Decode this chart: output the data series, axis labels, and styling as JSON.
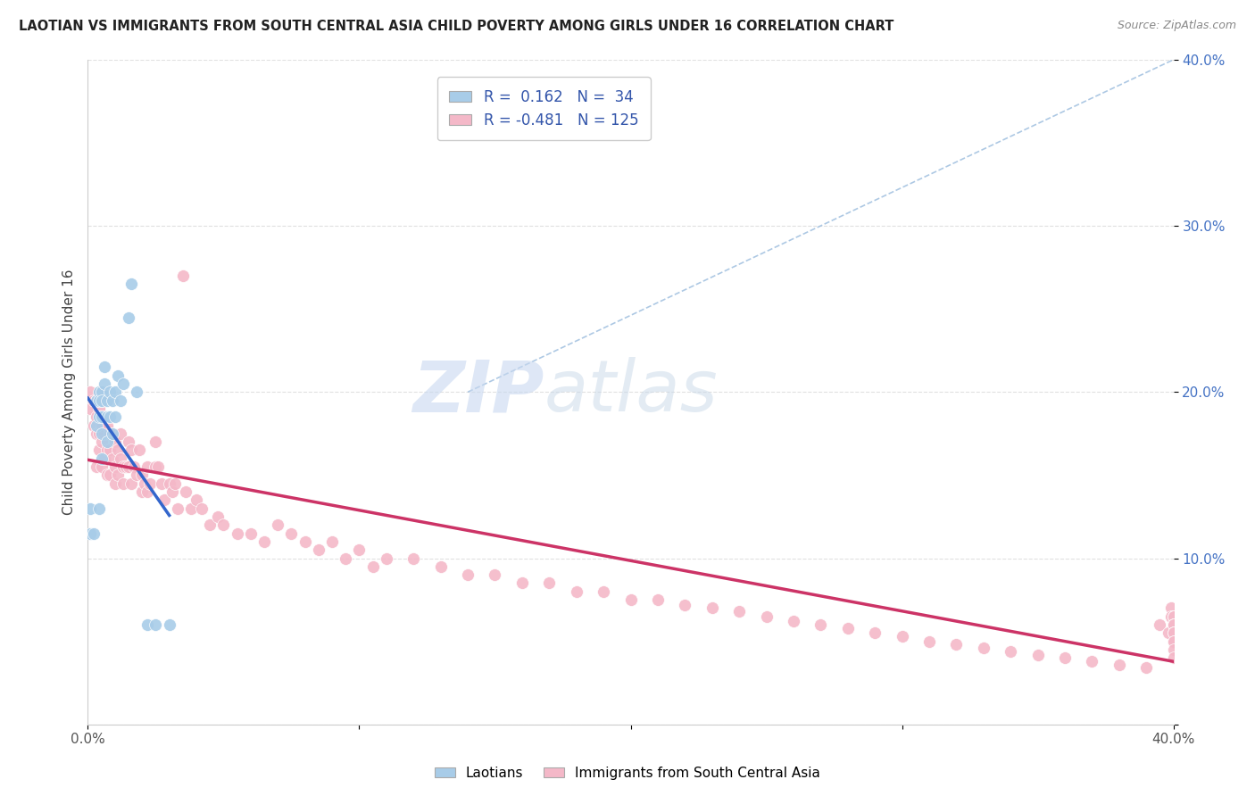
{
  "title": "LAOTIAN VS IMMIGRANTS FROM SOUTH CENTRAL ASIA CHILD POVERTY AMONG GIRLS UNDER 16 CORRELATION CHART",
  "source": "Source: ZipAtlas.com",
  "ylabel": "Child Poverty Among Girls Under 16",
  "watermark_zip": "ZIP",
  "watermark_atlas": "atlas",
  "xlim": [
    0.0,
    0.4
  ],
  "ylim": [
    0.0,
    0.4
  ],
  "blue_R": 0.162,
  "blue_N": 34,
  "pink_R": -0.481,
  "pink_N": 125,
  "blue_scatter_color": "#a8cce8",
  "pink_scatter_color": "#f4b8c8",
  "trend_blue": "#3366cc",
  "trend_pink": "#cc3366",
  "diagonal_color": "#99bbdd",
  "background_color": "#ffffff",
  "grid_color": "#dddddd",
  "laotians_x": [
    0.001,
    0.001,
    0.002,
    0.003,
    0.003,
    0.004,
    0.004,
    0.004,
    0.004,
    0.005,
    0.005,
    0.005,
    0.005,
    0.005,
    0.006,
    0.006,
    0.007,
    0.007,
    0.007,
    0.008,
    0.008,
    0.009,
    0.009,
    0.01,
    0.01,
    0.011,
    0.012,
    0.013,
    0.015,
    0.016,
    0.018,
    0.022,
    0.025,
    0.03
  ],
  "laotians_y": [
    0.13,
    0.115,
    0.115,
    0.195,
    0.18,
    0.2,
    0.195,
    0.185,
    0.13,
    0.2,
    0.195,
    0.185,
    0.175,
    0.16,
    0.215,
    0.205,
    0.195,
    0.185,
    0.17,
    0.2,
    0.185,
    0.195,
    0.175,
    0.2,
    0.185,
    0.21,
    0.195,
    0.205,
    0.245,
    0.265,
    0.2,
    0.06,
    0.06,
    0.06
  ],
  "immigrants_x": [
    0.001,
    0.001,
    0.002,
    0.002,
    0.003,
    0.003,
    0.003,
    0.003,
    0.004,
    0.004,
    0.004,
    0.005,
    0.005,
    0.005,
    0.005,
    0.005,
    0.006,
    0.006,
    0.006,
    0.007,
    0.007,
    0.007,
    0.008,
    0.008,
    0.008,
    0.009,
    0.009,
    0.01,
    0.01,
    0.01,
    0.011,
    0.011,
    0.012,
    0.012,
    0.013,
    0.013,
    0.014,
    0.015,
    0.015,
    0.016,
    0.016,
    0.017,
    0.018,
    0.019,
    0.02,
    0.02,
    0.021,
    0.022,
    0.022,
    0.023,
    0.025,
    0.025,
    0.026,
    0.027,
    0.028,
    0.03,
    0.031,
    0.032,
    0.033,
    0.035,
    0.036,
    0.038,
    0.04,
    0.042,
    0.045,
    0.048,
    0.05,
    0.055,
    0.06,
    0.065,
    0.07,
    0.075,
    0.08,
    0.085,
    0.09,
    0.095,
    0.1,
    0.105,
    0.11,
    0.12,
    0.13,
    0.14,
    0.15,
    0.16,
    0.17,
    0.18,
    0.19,
    0.2,
    0.21,
    0.22,
    0.23,
    0.24,
    0.25,
    0.26,
    0.27,
    0.28,
    0.29,
    0.3,
    0.31,
    0.32,
    0.33,
    0.34,
    0.35,
    0.36,
    0.37,
    0.38,
    0.39,
    0.395,
    0.398,
    0.399,
    0.399,
    0.4,
    0.4,
    0.4,
    0.4,
    0.4,
    0.4,
    0.4,
    0.4,
    0.4,
    0.4,
    0.4,
    0.4,
    0.4,
    0.4
  ],
  "immigrants_y": [
    0.2,
    0.19,
    0.195,
    0.18,
    0.195,
    0.185,
    0.175,
    0.155,
    0.19,
    0.175,
    0.165,
    0.2,
    0.195,
    0.18,
    0.17,
    0.155,
    0.185,
    0.175,
    0.16,
    0.18,
    0.165,
    0.15,
    0.175,
    0.165,
    0.15,
    0.175,
    0.16,
    0.17,
    0.155,
    0.145,
    0.165,
    0.15,
    0.175,
    0.16,
    0.155,
    0.145,
    0.155,
    0.17,
    0.155,
    0.165,
    0.145,
    0.155,
    0.15,
    0.165,
    0.15,
    0.14,
    0.145,
    0.14,
    0.155,
    0.145,
    0.17,
    0.155,
    0.155,
    0.145,
    0.135,
    0.145,
    0.14,
    0.145,
    0.13,
    0.27,
    0.14,
    0.13,
    0.135,
    0.13,
    0.12,
    0.125,
    0.12,
    0.115,
    0.115,
    0.11,
    0.12,
    0.115,
    0.11,
    0.105,
    0.11,
    0.1,
    0.105,
    0.095,
    0.1,
    0.1,
    0.095,
    0.09,
    0.09,
    0.085,
    0.085,
    0.08,
    0.08,
    0.075,
    0.075,
    0.072,
    0.07,
    0.068,
    0.065,
    0.062,
    0.06,
    0.058,
    0.055,
    0.053,
    0.05,
    0.048,
    0.046,
    0.044,
    0.042,
    0.04,
    0.038,
    0.036,
    0.034,
    0.06,
    0.055,
    0.07,
    0.065,
    0.065,
    0.065,
    0.065,
    0.06,
    0.06,
    0.06,
    0.06,
    0.055,
    0.055,
    0.055,
    0.05,
    0.05,
    0.045,
    0.04
  ]
}
